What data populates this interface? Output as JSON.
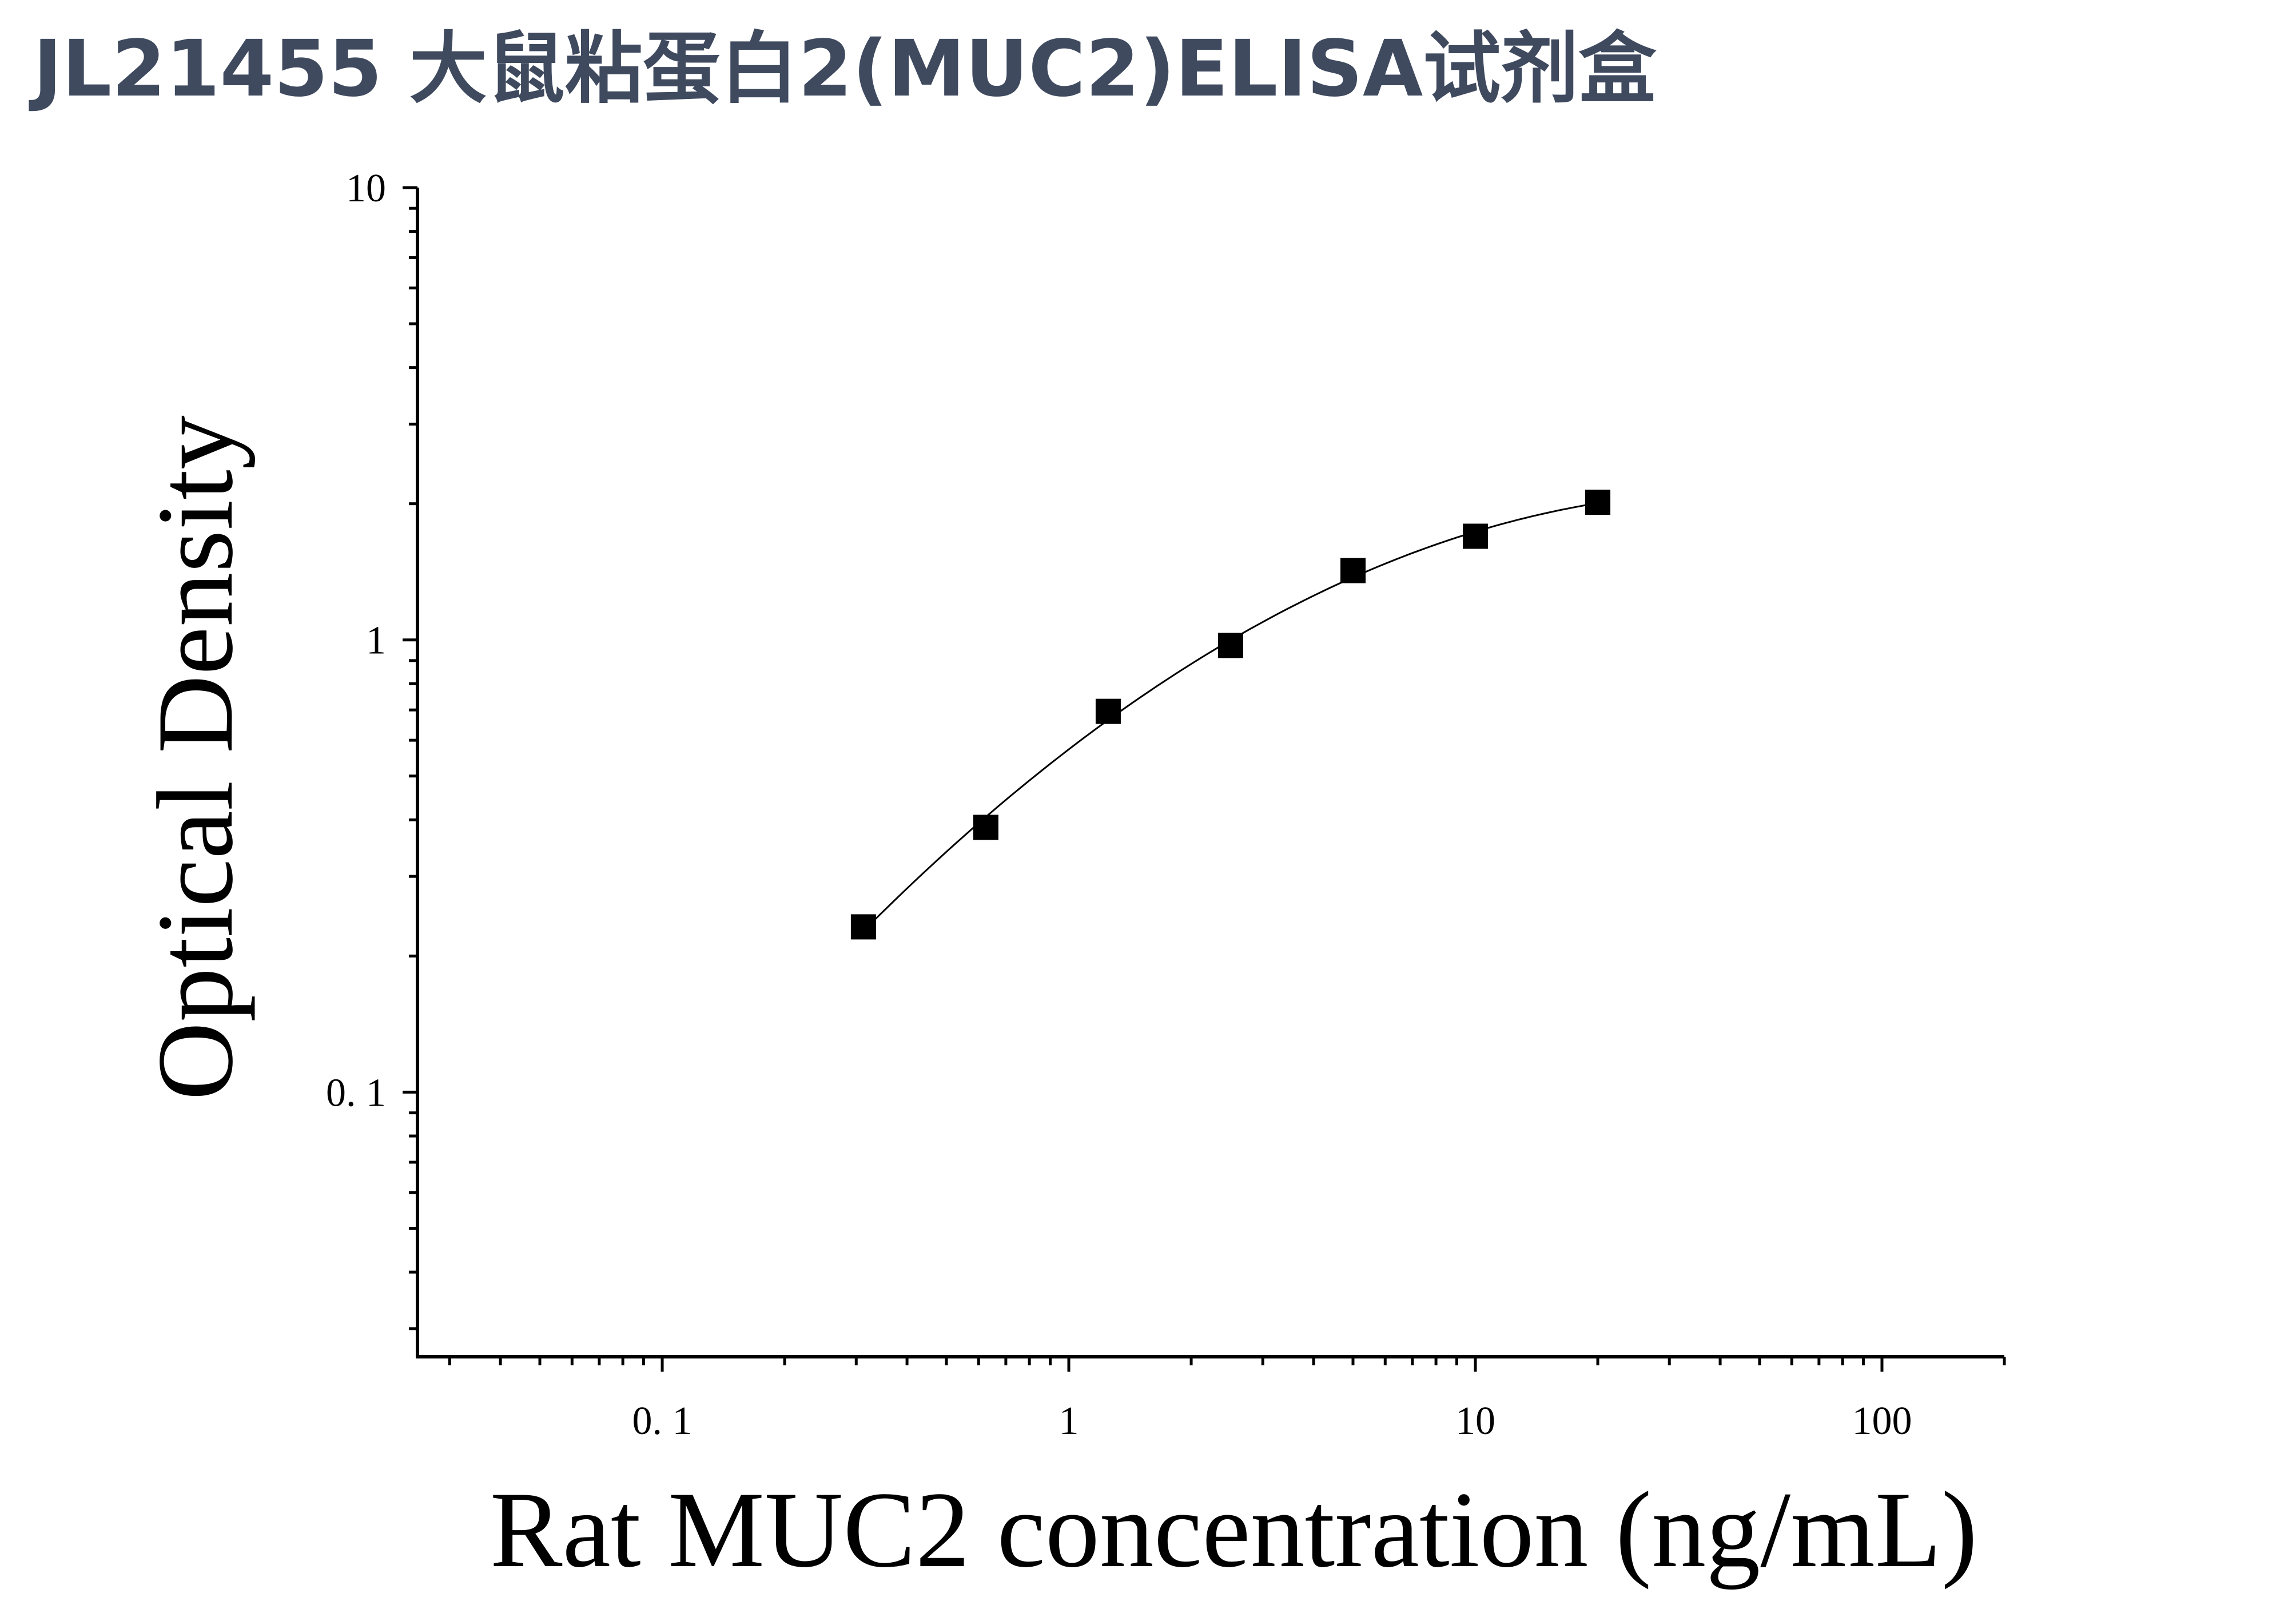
{
  "title": "JL21455 大鼠粘蛋白2(MUC2)ELISA试剂盒",
  "chart_data": {
    "type": "scatter",
    "xlabel": "Rat MUC2 concentration (ng/mL)",
    "ylabel": "Optical Density",
    "xscale": "log",
    "yscale": "log",
    "xlim": [
      0.025,
      200
    ],
    "ylim": [
      0.026,
      10
    ],
    "x_ticks": [
      {
        "value": 0.1,
        "label": "0. 1"
      },
      {
        "value": 1,
        "label": "1"
      },
      {
        "value": 10,
        "label": "10"
      },
      {
        "value": 100,
        "label": "100"
      }
    ],
    "y_ticks": [
      {
        "value": 0.1,
        "label": "0. 1"
      },
      {
        "value": 1,
        "label": "1"
      },
      {
        "value": 10,
        "label": "10"
      }
    ],
    "grid": false,
    "series": [
      {
        "x": [
          0.3125,
          0.625,
          1.25,
          2.5,
          5,
          10,
          20
        ],
        "y": [
          0.232,
          0.385,
          0.695,
          0.972,
          1.423,
          1.695,
          2.015
        ],
        "marker": "square",
        "fit_curve": true,
        "color": "#000000"
      }
    ]
  }
}
